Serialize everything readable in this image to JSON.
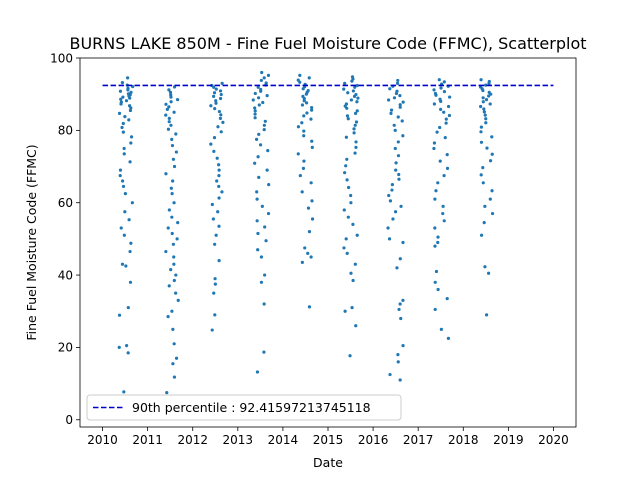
{
  "chart_data": {
    "type": "scatter",
    "title": "BURNS LAKE 850M - Fine Fuel Moisture Code (FFMC), Scatterplot",
    "xlabel": "Date",
    "ylabel": "Fine Fuel Moisture Code (FFMC)",
    "xlim": [
      2009.5,
      2020.5
    ],
    "ylim": [
      -2,
      100
    ],
    "x_ticks": [
      "2010",
      "2011",
      "2012",
      "2013",
      "2014",
      "2015",
      "2016",
      "2017",
      "2018",
      "2019",
      "2020"
    ],
    "y_ticks": [
      0,
      20,
      40,
      60,
      80,
      100
    ],
    "grid": false,
    "legend_position": "lower-left",
    "marker_color": "#1f77b4",
    "reference_line": {
      "label": "90th percentile : 92.41597213745118",
      "value": 92.41597213745118,
      "x_range": [
        2010,
        2020
      ],
      "color": "#0000cc",
      "style": "dashed"
    },
    "seasons": [
      {
        "year": 2010,
        "start": 2010.34,
        "end": 2010.67,
        "values": [
          94.5,
          93.2,
          92.5,
          92.1,
          91.6,
          91.2,
          90.8,
          90.5,
          90.1,
          89.8,
          89.5,
          89.2,
          88.9,
          88.6,
          88.2,
          87.8,
          87.3,
          86.8,
          86.2,
          85.5,
          84.7,
          83.8,
          82.9,
          81.9,
          80.8,
          79.5,
          78.2,
          76.5,
          75.0,
          73.5,
          71.3,
          69.0,
          67.5,
          66.0,
          64.5,
          62.5,
          60.0,
          57.5,
          55.3,
          53.0,
          51.0,
          48.8,
          46.5,
          43.0,
          42.5,
          38.0,
          31.0,
          28.9,
          20.5,
          20.0,
          18.5,
          7.7
        ]
      },
      {
        "year": 2011,
        "start": 2011.4,
        "end": 2011.68,
        "values": [
          92.0,
          91.2,
          90.5,
          89.8,
          89.2,
          88.5,
          87.9,
          87.2,
          86.5,
          85.8,
          85.0,
          84.2,
          83.3,
          82.4,
          81.4,
          80.3,
          79.0,
          77.5,
          75.8,
          74.0,
          72.0,
          70.0,
          68.0,
          66.0,
          64.0,
          62.5,
          60.0,
          58.0,
          56.0,
          54.5,
          53.0,
          51.5,
          50.0,
          48.5,
          46.5,
          45.0,
          43.0,
          41.5,
          40.0,
          38.5,
          37.0,
          35.0,
          33.0,
          30.0,
          28.5,
          25.0,
          21.0,
          17.0,
          15.5,
          11.8,
          7.5
        ]
      },
      {
        "year": 2012,
        "start": 2012.4,
        "end": 2012.67,
        "values": [
          93.0,
          92.4,
          91.9,
          91.4,
          90.9,
          90.4,
          89.9,
          89.4,
          88.8,
          88.2,
          87.5,
          86.8,
          86.0,
          85.2,
          84.3,
          83.3,
          82.2,
          81.0,
          79.6,
          78.0,
          76.2,
          74.2,
          72.3,
          70.5,
          69.0,
          67.5,
          66.0,
          64.5,
          63.0,
          61.3,
          59.5,
          57.5,
          55.5,
          53.5,
          51.0,
          48.5,
          44.0,
          39.0,
          37.5,
          35.0,
          29.0,
          24.8
        ]
      },
      {
        "year": 2013,
        "start": 2013.34,
        "end": 2013.69,
        "values": [
          96.0,
          95.2,
          94.5,
          93.8,
          93.1,
          92.5,
          91.9,
          91.3,
          90.8,
          90.2,
          89.6,
          89.0,
          88.4,
          87.7,
          87.0,
          86.2,
          85.4,
          84.5,
          83.5,
          82.5,
          81.4,
          80.2,
          78.9,
          77.5,
          76.0,
          74.4,
          72.7,
          70.9,
          69.0,
          67.0,
          65.0,
          63.0,
          61.0,
          59.0,
          57.0,
          55.0,
          53.3,
          51.5,
          49.5,
          47.0,
          45.0,
          40.0,
          38.0,
          32.0,
          18.7,
          13.2
        ]
      },
      {
        "year": 2014,
        "start": 2014.33,
        "end": 2014.66,
        "values": [
          95.2,
          94.5,
          93.9,
          93.3,
          92.7,
          92.1,
          91.5,
          91.0,
          90.5,
          90.0,
          89.4,
          88.8,
          88.2,
          87.6,
          87.0,
          86.3,
          85.6,
          84.8,
          84.0,
          83.1,
          82.1,
          81.0,
          79.8,
          78.5,
          77.0,
          75.3,
          73.5,
          71.5,
          69.5,
          67.5,
          65.5,
          63.0,
          60.5,
          58.5,
          55.5,
          52.0,
          47.5,
          46.0,
          45.0,
          43.5,
          31.2
        ]
      },
      {
        "year": 2015,
        "start": 2015.34,
        "end": 2015.68,
        "values": [
          94.8,
          94.2,
          93.6,
          93.0,
          92.4,
          91.9,
          91.4,
          90.9,
          90.4,
          89.9,
          89.4,
          88.9,
          88.4,
          87.9,
          87.3,
          86.7,
          86.1,
          85.4,
          84.7,
          84.0,
          83.2,
          82.3,
          81.4,
          80.4,
          79.3,
          78.1,
          76.8,
          75.3,
          73.7,
          72.0,
          70.2,
          68.3,
          66.3,
          64.2,
          62.0,
          60.0,
          58.0,
          56.0,
          54.0,
          51.0,
          50.0,
          47.5,
          46.0,
          43.0,
          40.5,
          38.5,
          31.0,
          30.0,
          26.0,
          17.7
        ]
      },
      {
        "year": 2016,
        "start": 2016.33,
        "end": 2016.67,
        "values": [
          93.8,
          93.0,
          92.2,
          91.5,
          90.8,
          90.2,
          89.6,
          89.0,
          88.4,
          87.8,
          87.1,
          86.4,
          85.6,
          84.7,
          83.7,
          82.6,
          81.4,
          80.0,
          78.5,
          76.8,
          75.0,
          73.0,
          71.0,
          69.0,
          67.8,
          66.5,
          65.0,
          63.5,
          62.0,
          60.5,
          59.0,
          57.5,
          55.5,
          53.0,
          50.0,
          49.0,
          44.5,
          42.0,
          33.0,
          32.0,
          30.5,
          28.0,
          20.5,
          18.0,
          16.0,
          12.5,
          11.0
        ]
      },
      {
        "year": 2017,
        "start": 2017.34,
        "end": 2017.7,
        "values": [
          94.0,
          93.4,
          92.8,
          92.2,
          91.7,
          91.2,
          90.7,
          90.2,
          89.7,
          89.2,
          88.6,
          88.0,
          87.3,
          86.6,
          85.8,
          85.0,
          84.1,
          83.1,
          82.0,
          80.8,
          79.5,
          78.0,
          76.5,
          75.0,
          73.3,
          71.5,
          69.5,
          67.5,
          65.5,
          63.3,
          61.0,
          59.0,
          57.0,
          55.0,
          53.0,
          50.5,
          49.0,
          48.0,
          41.0,
          38.0,
          36.0,
          33.5,
          30.5,
          25.0,
          22.5
        ]
      },
      {
        "year": 2018,
        "start": 2018.38,
        "end": 2018.66,
        "values": [
          94.0,
          93.5,
          93.0,
          92.5,
          92.0,
          91.5,
          91.0,
          90.5,
          90.0,
          89.5,
          89.0,
          88.5,
          87.9,
          87.3,
          86.6,
          85.9,
          85.1,
          84.2,
          83.2,
          82.1,
          80.9,
          79.6,
          78.2,
          76.7,
          75.1,
          73.4,
          71.6,
          69.7,
          67.7,
          65.5,
          63.3,
          61.0,
          59.0,
          57.0,
          54.5,
          51.0,
          42.3,
          40.5,
          29.0
        ]
      }
    ]
  }
}
